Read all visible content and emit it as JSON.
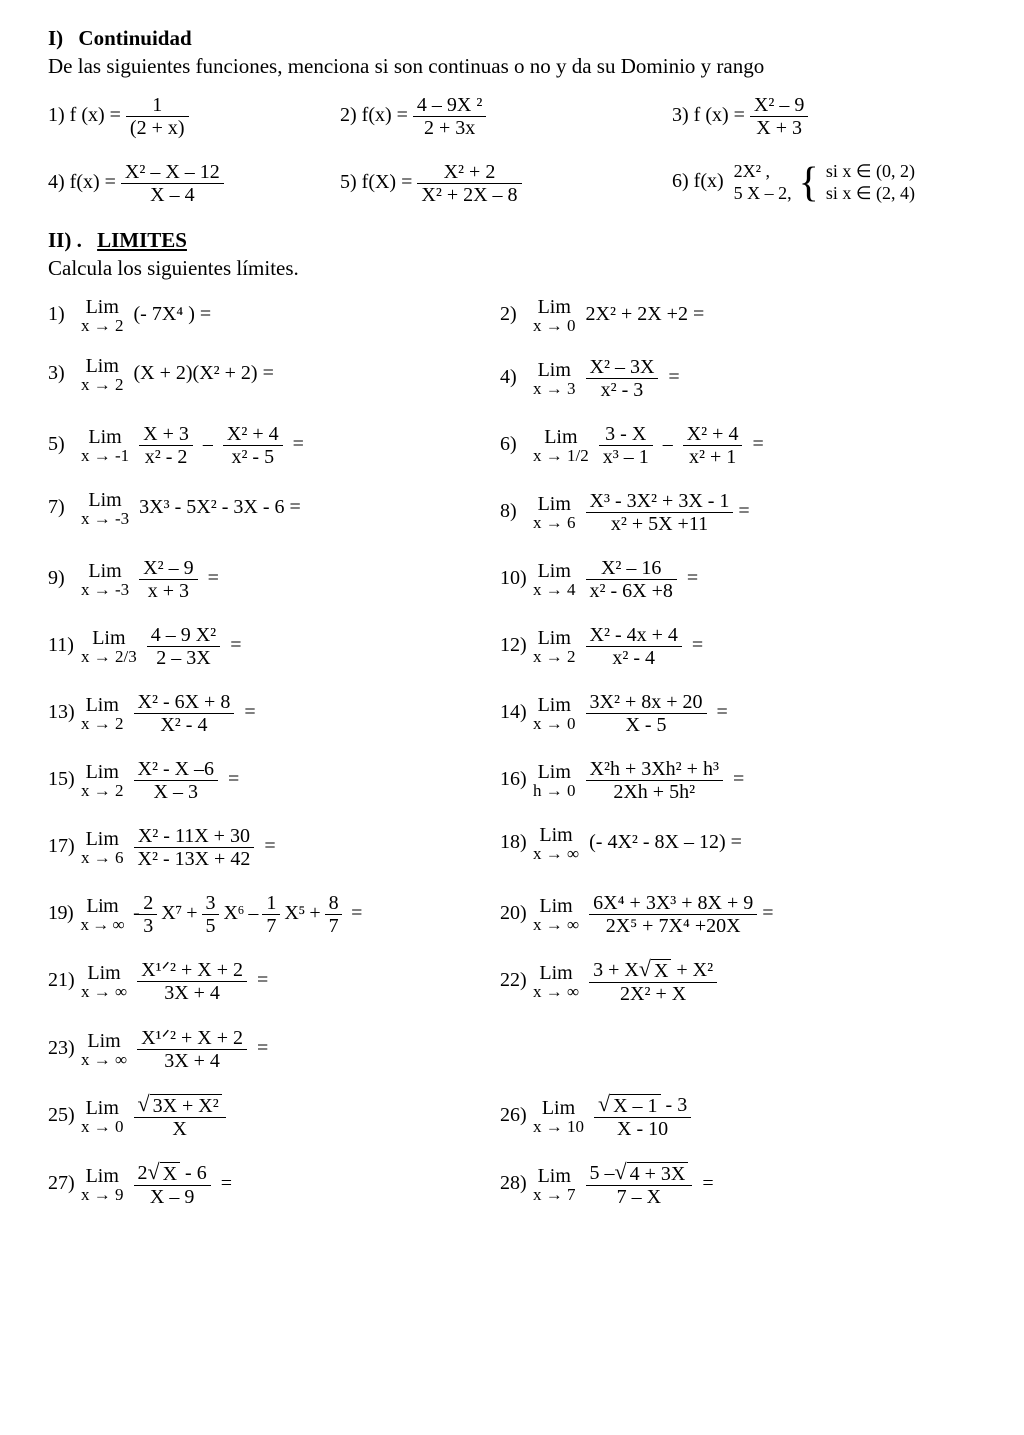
{
  "sec1": {
    "roman": "I)",
    "title": "Continuidad",
    "instr": "De las siguientes funciones, menciona si son continuas o no y da su Dominio y rango",
    "p": {
      "n1": "1) f (x) =",
      "f1n": "1",
      "f1d": "(2 + x)",
      "n2": "2)  f(x) =",
      "f2n": "4 – 9X ²",
      "f2d": "2 + 3x",
      "n3": "3) f (x) =",
      "f3n": "X² – 9",
      "f3d": "X + 3",
      "n4": "4) f(x) =",
      "f4n": "X² – X – 12",
      "f4d": "X – 4",
      "n5": "5)  f(X) =",
      "f5n": "X² + 2",
      "f5d": "X² + 2X – 8",
      "n6": "6) f(x)",
      "p6a": "2X² ,",
      "p6b": "5 X – 2,",
      "c6a": "si x ∈  (0, 2)",
      "c6b": "si x ∈ (2, 4)"
    }
  },
  "sec2": {
    "roman": "II)  .",
    "title": "LIMITES",
    "instr": "Calcula los siguientes límites.",
    "L": {
      "l1": {
        "n": "1)",
        "to": "x → 2",
        "body": "(- 7X⁴ ) ="
      },
      "l2": {
        "n": "2)",
        "to": "x → 0",
        "body": "2X² + 2X +2   ="
      },
      "l3": {
        "n": "3)",
        "to": "x → 2",
        "body": "(X + 2)(X² + 2) ="
      },
      "l4": {
        "n": "4)",
        "to": "x → 3",
        "fn": "X² – 3X",
        "fd": "x² - 3",
        "eq": "="
      },
      "l5": {
        "n": "5)",
        "to": "x → -1",
        "f1n": "X  + 3",
        "f1d": "x² - 2",
        "mid": "–",
        "f2n": "X² + 4",
        "f2d": "x² - 5",
        "eq": "="
      },
      "l6": {
        "n": "6)",
        "to": "x → 1/2",
        "f1n": "3 - X",
        "f1d": "x³ – 1",
        "mid": "–",
        "f2n": "X² + 4",
        "f2d": "x² + 1",
        "eq": "="
      },
      "l7": {
        "n": "7)",
        "to": "x → -3",
        "body": "3X³ - 5X² - 3X - 6 ="
      },
      "l8": {
        "n": "8)",
        "to": "x → 6",
        "fn": "X³ - 3X² + 3X - 1",
        "fd": "x² + 5X +11",
        "eq": "="
      },
      "l9": {
        "n": "9)",
        "to": "x → -3",
        "fn": "X² – 9",
        "fd": "x + 3",
        "eq": "="
      },
      "l10": {
        "n": "10)",
        "to": "x → 4",
        "fn": "X² – 16",
        "fd": "x² - 6X +8",
        "eq": "="
      },
      "l11": {
        "n": "11)",
        "to": "x → 2/3",
        "fn": "4 – 9 X²",
        "fd": "2 – 3X",
        "eq": "="
      },
      "l12": {
        "n": "12)",
        "to": "x → 2",
        "fn": "X² - 4x + 4",
        "fd": "x²  - 4",
        "eq": "="
      },
      "l13": {
        "n": "13)",
        "to": "x → 2",
        "fn": "X² - 6X + 8",
        "fd": "X²  - 4",
        "eq": "="
      },
      "l14": {
        "n": "14)",
        "to": "x → 0",
        "fn": "3X²  + 8x + 20",
        "fd": "X - 5",
        "eq": "="
      },
      "l15": {
        "n": "15)",
        "to": "x → 2",
        "fn": "X² - X –6",
        "fd": "X – 3",
        "eq": "="
      },
      "l16": {
        "n": "16)",
        "to": "h → 0",
        "fn": "X²h + 3Xh²  + h³",
        "fd": "2Xh + 5h²",
        "eq": "="
      },
      "l17": {
        "n": "17)",
        "to": "x → 6",
        "fn": "X² - 11X + 30",
        "fd": "X² - 13X + 42",
        "eq": "="
      },
      "l18": {
        "n": "18)",
        "to": "x → ∞",
        "body": "(- 4X² - 8X – 12)  ="
      },
      "l19": {
        "n": "19)",
        "to": "x → ∞",
        "eq": "="
      },
      "l20": {
        "n": "20)",
        "to": "x → ∞",
        "fn": "6X⁴ + 3X³ + 8X + 9",
        "fd": "2X⁵ + 7X⁴ +20X",
        "eq": "="
      },
      "l21": {
        "n": "21)",
        "to": "x → ∞",
        "fn": "X¹ᐟ² + X + 2",
        "fd": "3X + 4",
        "eq": "="
      },
      "l22": {
        "n": "22)",
        "to": "x → ∞",
        "eq": ""
      },
      "l23": {
        "n": "23)",
        "to": "x → ∞",
        "fn": "X¹ᐟ² + X + 2",
        "fd": "3X + 4",
        "eq": "="
      },
      "l25": {
        "n": "25)",
        "to": "x → 0",
        "eq": ""
      },
      "l26": {
        "n": "26)",
        "to": "x → 10",
        "eq": ""
      },
      "l27": {
        "n": "27)",
        "to": "x → 9",
        "eq": "="
      },
      "l28": {
        "n": "28)",
        "to": "x → 7",
        "eq": "="
      }
    },
    "lim_word": "Lim",
    "txt": {
      "p19a": "-",
      "p19b": "2",
      "p19c": "3",
      "p19d": "X⁷  +",
      "p19e": "3",
      "p19f": "5",
      "p19g": "X⁶ –",
      "p19h": "1",
      "p19i": "7",
      "p19j": "X⁵ +",
      "p19k": "8",
      "p19l": "7",
      "p22a": "3 + X",
      "p22b": "X",
      "p22c": "+ X²",
      "p22d": "2X² + X",
      "p25a": "3X + X²",
      "p25b": "X",
      "p26a": "X – 1",
      "p26b": " - 3",
      "p26c": "X - 10",
      "p27a": "2",
      "p27b": "X",
      "p27c": " - 6",
      "p27d": "X – 9",
      "p28a": "5 –",
      "p28b": "4 + 3X",
      "p28c": "7 – X"
    }
  }
}
